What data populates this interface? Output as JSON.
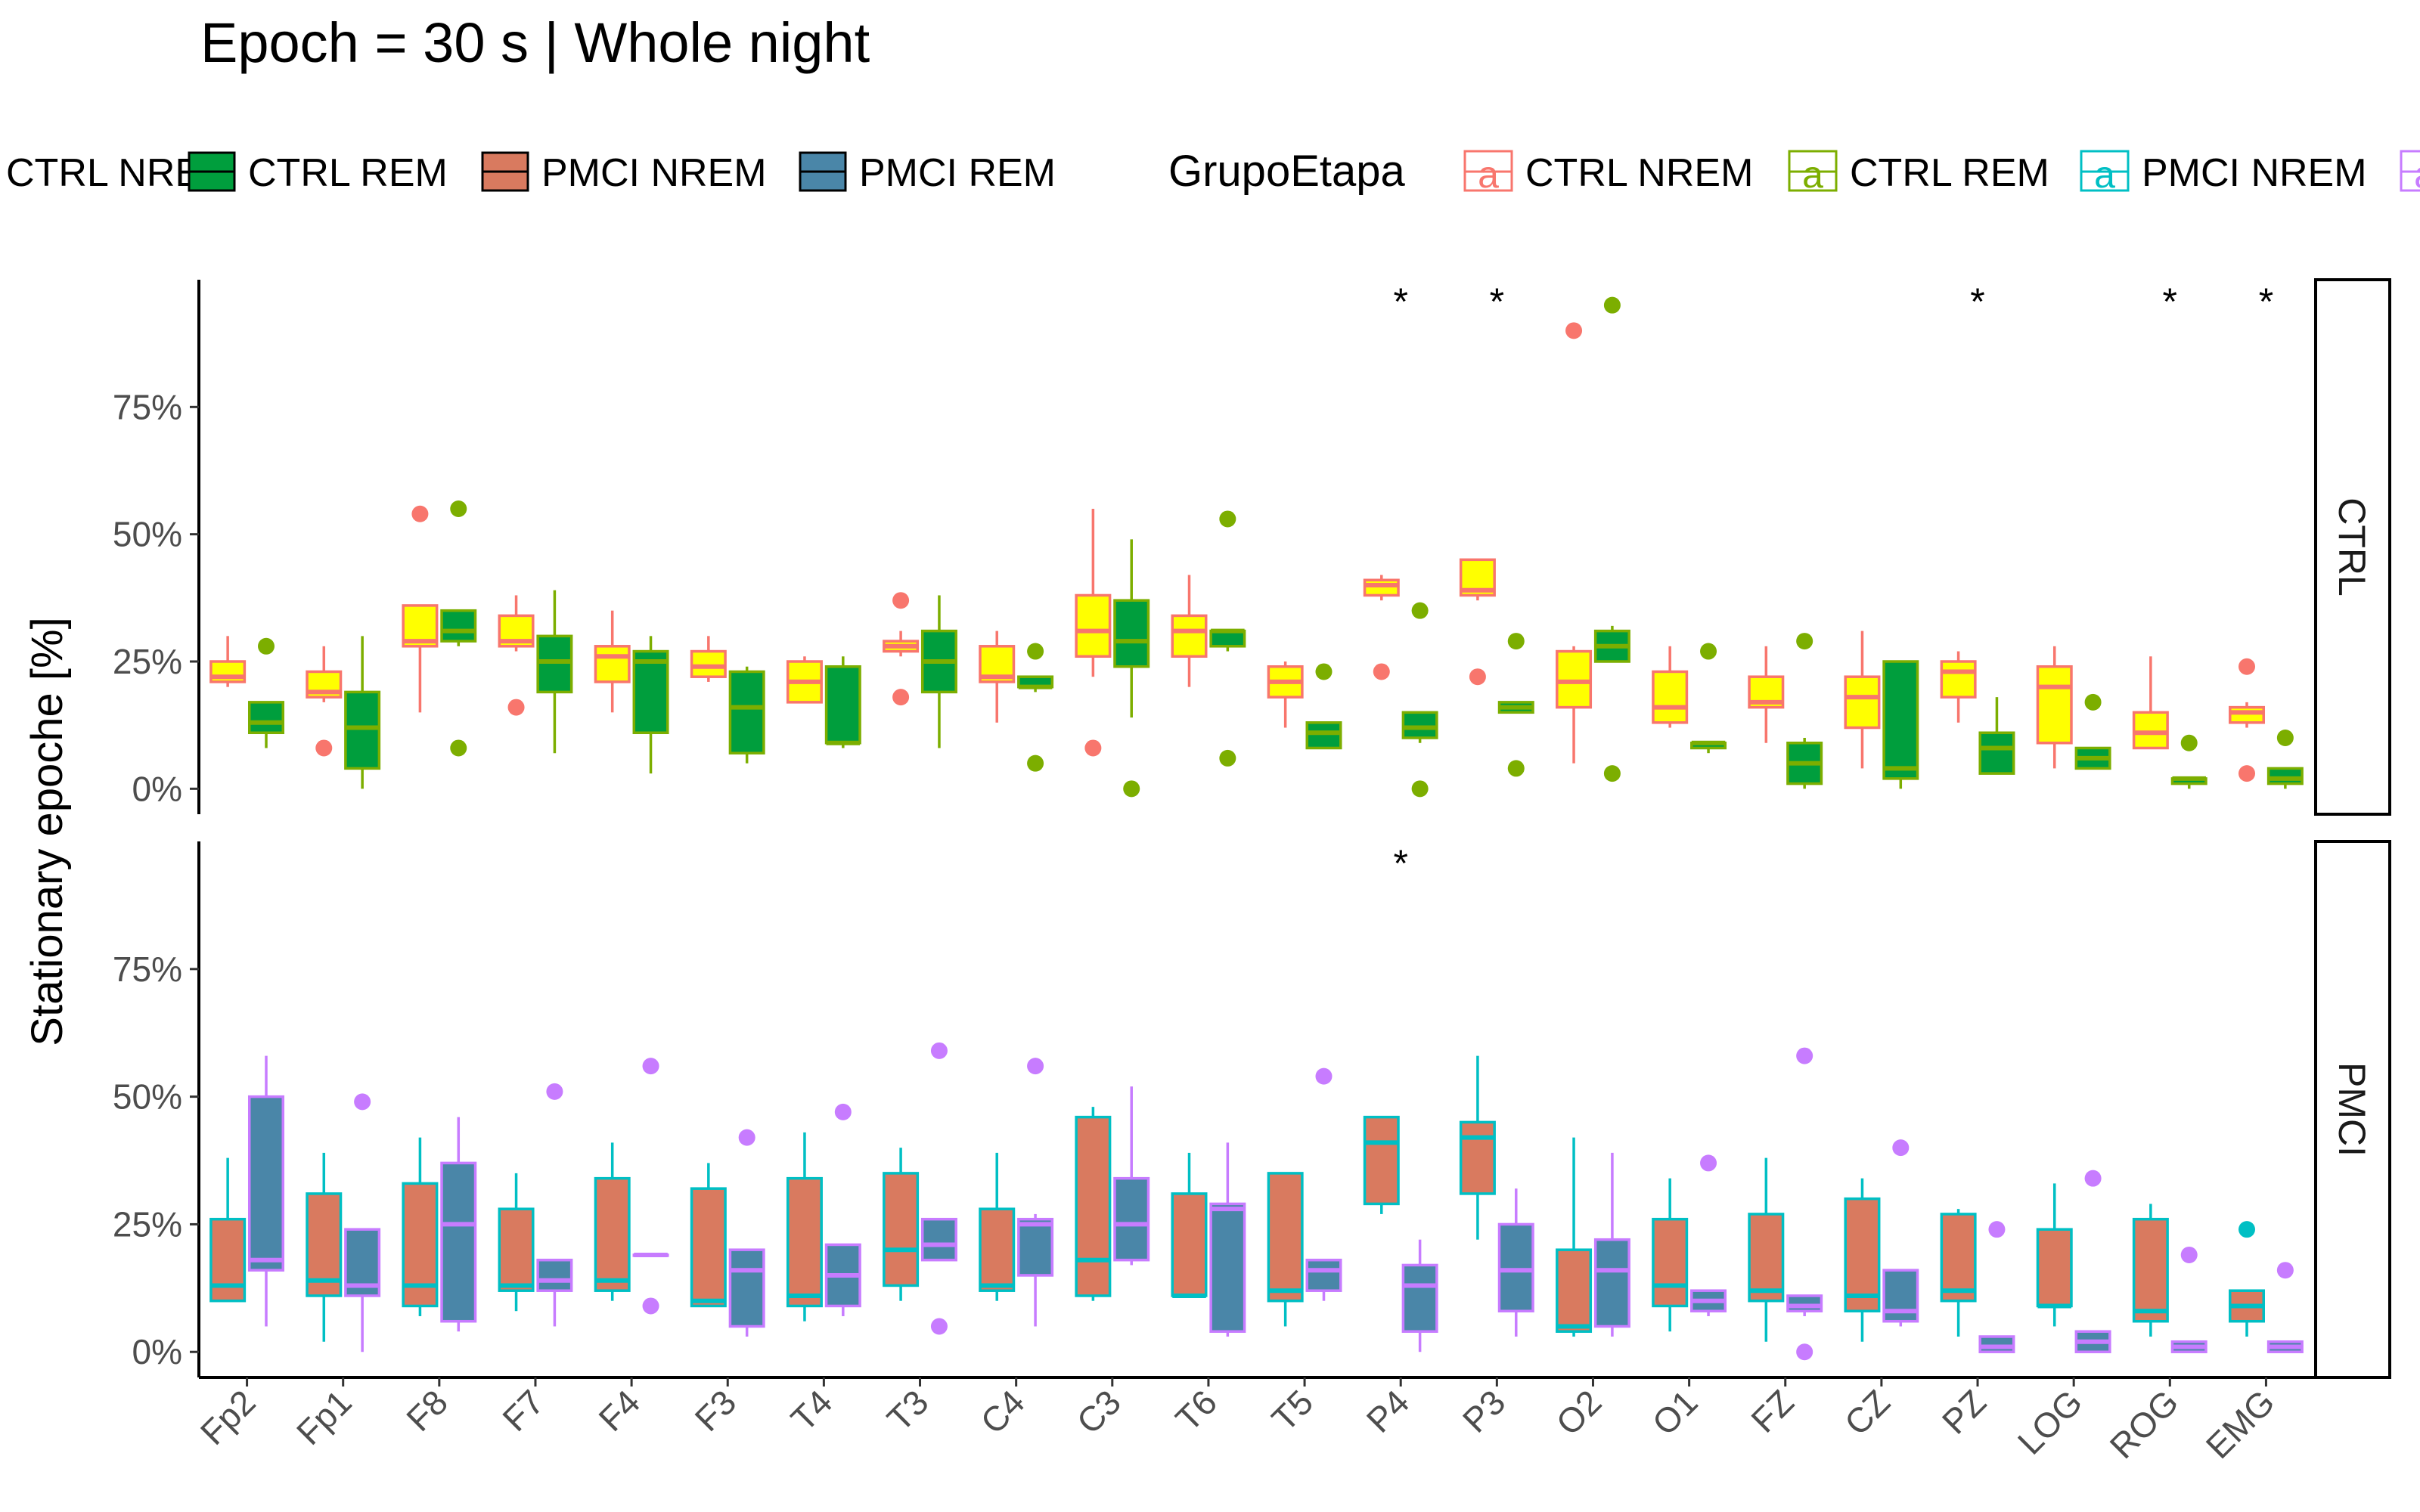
{
  "chart_data": {
    "type": "box",
    "title": "Epoch = 30 s | Whole night",
    "ylabel": "Stationary epoche [%]",
    "xlabel": "",
    "ylim": [
      -5,
      100
    ],
    "yticks": [
      0,
      25,
      50,
      75
    ],
    "ytick_labels": [
      "0%",
      "25%",
      "50%",
      "75%"
    ],
    "categories": [
      "Fp2",
      "Fp1",
      "F8",
      "F7",
      "F4",
      "F3",
      "T4",
      "T3",
      "C4",
      "C3",
      "T6",
      "T5",
      "P4",
      "P3",
      "O2",
      "O1",
      "FZ",
      "CZ",
      "PZ",
      "LOG",
      "ROG",
      "EMG"
    ],
    "legend1": {
      "position": "top",
      "items": [
        {
          "label": "CTRL NREM",
          "fill": "#FFFF00"
        },
        {
          "label": "CTRL REM",
          "fill": "#009E3D"
        },
        {
          "label": "PMCI NREM",
          "fill": "#D97A5F"
        },
        {
          "label": "PMCI REM",
          "fill": "#4A86A8"
        }
      ]
    },
    "legend2": {
      "title": "GrupoEtapa",
      "glyph": "a",
      "items": [
        {
          "label": "CTRL NREM",
          "color": "#F8766D"
        },
        {
          "label": "CTRL REM",
          "color": "#7CAE00"
        },
        {
          "label": "PMCI NREM",
          "color": "#00BFC4"
        },
        {
          "label": "PMCI REM",
          "color": "#C77CFF"
        }
      ]
    },
    "panels": [
      {
        "strip": "CTRL",
        "series": [
          {
            "name": "CTRL NREM",
            "fill": "#FFFF00",
            "line": "#F8766D",
            "boxes": [
              [
                20,
                21,
                22,
                25,
                30
              ],
              [
                17,
                18,
                19,
                23,
                28
              ],
              [
                15,
                28,
                29,
                36,
                36
              ],
              [
                27,
                28,
                29,
                34,
                38
              ],
              [
                15,
                21,
                26,
                28,
                35
              ],
              [
                21,
                22,
                24,
                27,
                30
              ],
              [
                17,
                17,
                21,
                25,
                26
              ],
              [
                26,
                27,
                28,
                29,
                31
              ],
              [
                13,
                21,
                22,
                28,
                31
              ],
              [
                22,
                26,
                31,
                38,
                55
              ],
              [
                20,
                26,
                31,
                34,
                42
              ],
              [
                12,
                18,
                21,
                24,
                25
              ],
              [
                37,
                38,
                40,
                41,
                42
              ],
              [
                37,
                38,
                39,
                45,
                45
              ],
              [
                5,
                16,
                21,
                27,
                28
              ],
              [
                12,
                13,
                16,
                23,
                28
              ],
              [
                9,
                16,
                17,
                22,
                28
              ],
              [
                4,
                12,
                18,
                22,
                31
              ],
              [
                13,
                18,
                23,
                25,
                27
              ],
              [
                4,
                9,
                20,
                24,
                28
              ],
              [
                8,
                8,
                11,
                15,
                26
              ],
              [
                12,
                13,
                15,
                16,
                17
              ]
            ],
            "outliers": [
              [],
              [
                8
              ],
              [
                54
              ],
              [
                16
              ],
              [],
              [],
              [],
              [
                18,
                37
              ],
              [],
              [
                8
              ],
              [],
              [],
              [
                23
              ],
              [
                22
              ],
              [
                90
              ],
              [],
              [],
              [],
              [],
              [],
              [],
              [
                3,
                24
              ]
            ]
          },
          {
            "name": "CTRL REM",
            "fill": "#009E3D",
            "line": "#7CAE00",
            "boxes": [
              [
                8,
                11,
                13,
                17,
                17
              ],
              [
                0,
                4,
                12,
                19,
                30
              ],
              [
                28,
                29,
                31,
                35,
                35
              ],
              [
                7,
                19,
                25,
                30,
                39
              ],
              [
                3,
                11,
                25,
                27,
                30
              ],
              [
                5,
                7,
                16,
                23,
                24
              ],
              [
                8,
                9,
                9,
                24,
                26
              ],
              [
                8,
                19,
                25,
                31,
                38
              ],
              [
                19,
                20,
                20,
                22,
                22
              ],
              [
                14,
                24,
                29,
                37,
                49
              ],
              [
                27,
                28,
                31,
                31,
                31
              ],
              [
                8,
                8,
                11,
                13,
                13
              ],
              [
                9,
                10,
                12,
                15,
                15
              ],
              [
                15,
                15,
                16,
                17,
                17
              ],
              [
                25,
                25,
                28,
                31,
                32
              ],
              [
                7,
                8,
                9,
                9,
                9
              ],
              [
                0,
                1,
                5,
                9,
                10
              ],
              [
                0,
                2,
                4,
                25,
                25
              ],
              [
                3,
                3,
                8,
                11,
                18
              ],
              [
                4,
                4,
                6,
                8,
                8
              ],
              [
                0,
                1,
                2,
                2,
                2
              ],
              [
                0,
                1,
                2,
                4,
                4
              ]
            ],
            "outliers": [
              [
                28
              ],
              [],
              [
                8,
                55
              ],
              [],
              [],
              [],
              [],
              [],
              [
                5,
                27
              ],
              [
                0
              ],
              [
                6,
                53
              ],
              [
                23
              ],
              [
                0,
                35
              ],
              [
                4,
                29
              ],
              [
                3,
                95
              ],
              [
                27
              ],
              [
                29
              ],
              [],
              [],
              [
                17
              ],
              [
                9
              ],
              [
                10
              ]
            ]
          }
        ],
        "stars": [
          "P4",
          "P3",
          "PZ",
          "ROG",
          "EMG"
        ]
      },
      {
        "strip": "PMCI",
        "series": [
          {
            "name": "PMCI NREM",
            "fill": "#D97A5F",
            "line": "#00BFC4",
            "boxes": [
              [
                10,
                10,
                13,
                26,
                38
              ],
              [
                2,
                11,
                14,
                31,
                39
              ],
              [
                7,
                9,
                13,
                33,
                42
              ],
              [
                8,
                12,
                13,
                28,
                35
              ],
              [
                10,
                12,
                14,
                34,
                41
              ],
              [
                9,
                9,
                10,
                32,
                37
              ],
              [
                6,
                9,
                11,
                34,
                43
              ],
              [
                10,
                13,
                20,
                35,
                40
              ],
              [
                10,
                12,
                13,
                28,
                39
              ],
              [
                10,
                11,
                18,
                46,
                48
              ],
              [
                11,
                11,
                11,
                31,
                39
              ],
              [
                5,
                10,
                12,
                35,
                35
              ],
              [
                27,
                29,
                41,
                46,
                46
              ],
              [
                22,
                31,
                42,
                45,
                58
              ],
              [
                3,
                4,
                5,
                20,
                42
              ],
              [
                4,
                9,
                13,
                26,
                34
              ],
              [
                2,
                10,
                12,
                27,
                38
              ],
              [
                2,
                8,
                11,
                30,
                34
              ],
              [
                3,
                10,
                12,
                27,
                28
              ],
              [
                5,
                9,
                9,
                24,
                33
              ],
              [
                3,
                6,
                8,
                26,
                29
              ],
              [
                3,
                6,
                9,
                12,
                12
              ]
            ],
            "outliers": [
              [],
              [],
              [],
              [],
              [],
              [],
              [],
              [],
              [],
              [],
              [],
              [],
              [],
              [],
              [],
              [],
              [],
              [],
              [],
              [],
              [],
              [
                24
              ]
            ]
          },
          {
            "name": "PMCI REM",
            "fill": "#4A86A8",
            "line": "#C77CFF",
            "boxes": [
              [
                5,
                16,
                18,
                50,
                58
              ],
              [
                0,
                11,
                13,
                24,
                24
              ],
              [
                4,
                6,
                25,
                37,
                46
              ],
              [
                5,
                12,
                14,
                18,
                18
              ],
              [
                19,
                19,
                19,
                19,
                19
              ],
              [
                3,
                5,
                16,
                20,
                20
              ],
              [
                7,
                9,
                15,
                21,
                21
              ],
              [
                18,
                18,
                21,
                26,
                26
              ],
              [
                5,
                15,
                25,
                26,
                27
              ],
              [
                17,
                18,
                25,
                34,
                52
              ],
              [
                3,
                4,
                28,
                29,
                41
              ],
              [
                10,
                12,
                16,
                18,
                18
              ],
              [
                0,
                4,
                13,
                17,
                22
              ],
              [
                3,
                8,
                16,
                25,
                32
              ],
              [
                3,
                5,
                16,
                22,
                39
              ],
              [
                7,
                8,
                10,
                12,
                12
              ],
              [
                7,
                8,
                9,
                11,
                11
              ],
              [
                5,
                6,
                8,
                16,
                16
              ],
              [
                0,
                0,
                1,
                3,
                3
              ],
              [
                0,
                0,
                2,
                4,
                4
              ],
              [
                0,
                0,
                1,
                2,
                2
              ],
              [
                0,
                0,
                1,
                2,
                2
              ]
            ],
            "outliers": [
              [],
              [
                49
              ],
              [],
              [
                51
              ],
              [
                9,
                56
              ],
              [
                42
              ],
              [
                47
              ],
              [
                5,
                59
              ],
              [
                56
              ],
              [],
              [],
              [
                54
              ],
              [],
              [],
              [],
              [
                37
              ],
              [
                0,
                58
              ],
              [
                40
              ],
              [
                24
              ],
              [
                34
              ],
              [
                19
              ],
              [
                16
              ]
            ]
          }
        ],
        "stars": [
          "P4"
        ]
      }
    ]
  }
}
